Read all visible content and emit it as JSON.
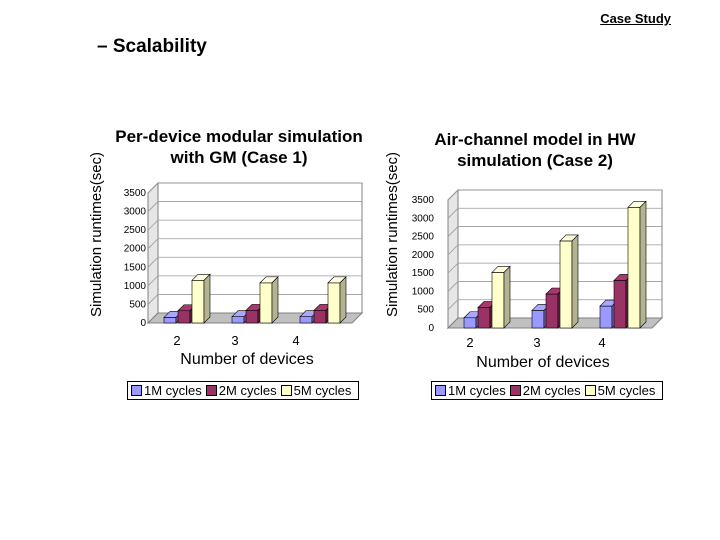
{
  "header": {
    "case_study": "Case Study",
    "bullet": "– Scalability"
  },
  "colors": {
    "s1": "#9999FF",
    "s2": "#993366",
    "s3": "#FFFFCC"
  },
  "chart_data": [
    {
      "type": "bar",
      "title": "Per-device modular simulation with GM (Case 1)",
      "ylabel": "Simulation runtimes(sec)",
      "xlabel": "Number of devices",
      "categories": [
        "2",
        "3",
        "4"
      ],
      "yticks": [
        "0",
        "500",
        "1000",
        "1500",
        "2000",
        "2500",
        "3000",
        "3500"
      ],
      "ylim": [
        0,
        3500
      ],
      "series": [
        {
          "name": "1M cycles",
          "values": [
            150,
            170,
            170
          ]
        },
        {
          "name": "2M cycles",
          "values": [
            330,
            340,
            340
          ]
        },
        {
          "name": "5M cycles",
          "values": [
            1150,
            1080,
            1080
          ]
        }
      ]
    },
    {
      "type": "bar",
      "title": "Air-channel model in HW simulation (Case 2)",
      "ylabel": "Simulation runtimes(sec)",
      "xlabel": "Number of devices",
      "categories": [
        "2",
        "3",
        "4"
      ],
      "yticks": [
        "0",
        "500",
        "1000",
        "1500",
        "2000",
        "2500",
        "3000",
        "3500"
      ],
      "ylim": [
        0,
        3500
      ],
      "series": [
        {
          "name": "1M cycles",
          "values": [
            280,
            480,
            600
          ]
        },
        {
          "name": "2M cycles",
          "values": [
            560,
            930,
            1300
          ]
        },
        {
          "name": "5M cycles",
          "values": [
            1520,
            2380,
            3300
          ]
        }
      ]
    }
  ]
}
